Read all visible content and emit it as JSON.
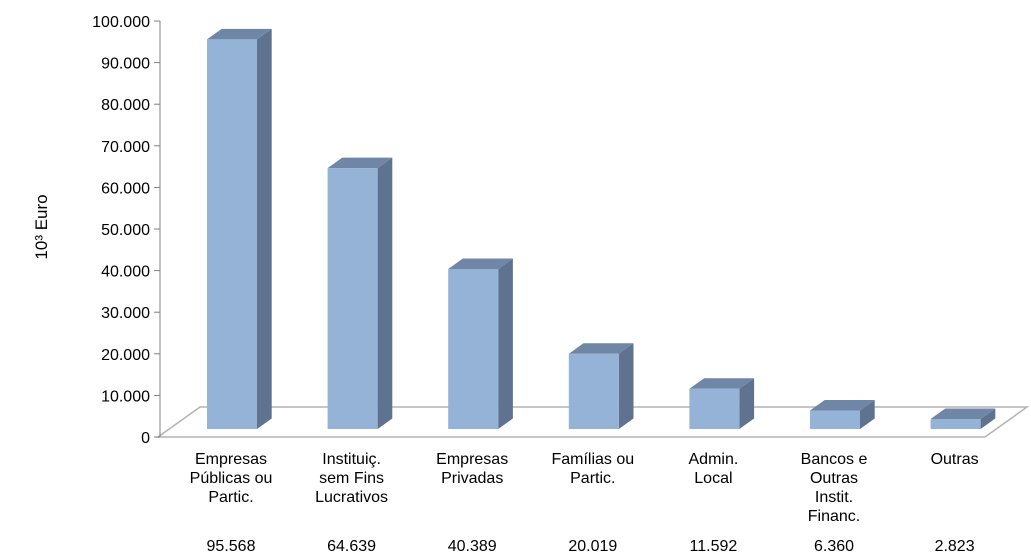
{
  "chart_data": {
    "type": "bar",
    "ylabel": "10³ Euro",
    "ylim": [
      0,
      100000
    ],
    "yticks": [
      "0",
      "10.000",
      "20.000",
      "30.000",
      "40.000",
      "50.000",
      "60.000",
      "70.000",
      "80.000",
      "90.000",
      "100.000"
    ],
    "categories": [
      [
        "Empresas",
        "Públicas ou",
        "Partic."
      ],
      [
        "Instituiç.",
        "sem Fins",
        "Lucrativos"
      ],
      [
        "Empresas",
        "Privadas"
      ],
      [
        "Famílias ou",
        "Partic."
      ],
      [
        "Admin.",
        "Local"
      ],
      [
        "Bancos e",
        "Outras",
        "Instit.",
        "Financ."
      ],
      [
        "Outras"
      ]
    ],
    "values": [
      95568,
      64639,
      40389,
      20019,
      11592,
      6360,
      2823
    ],
    "value_labels": [
      "95.568",
      "64.639",
      "40.389",
      "20.019",
      "11.592",
      "6.360",
      "2.823"
    ],
    "colors": {
      "front": "#95b3d7",
      "side": "#5f7390",
      "top": "#6f86a6",
      "floor": "#b3b3b3"
    },
    "grid": false,
    "legend": "none"
  }
}
